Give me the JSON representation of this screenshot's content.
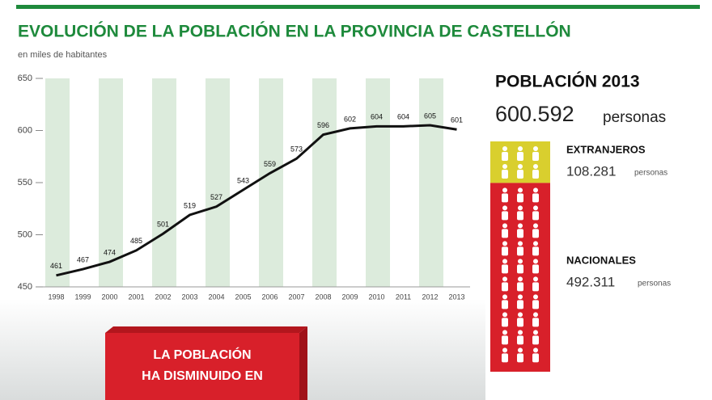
{
  "chart_data": [
    {
      "type": "line",
      "title": "EVOLUCIÓN DE LA POBLACIÓN EN LA PROVINCIA DE CASTELLÓN",
      "subtitle": "en miles de habitantes",
      "categories": [
        "1998",
        "1999",
        "2000",
        "2001",
        "2002",
        "2003",
        "2004",
        "2005",
        "2006",
        "2007",
        "2008",
        "2009",
        "2010",
        "2011",
        "2012",
        "2013"
      ],
      "series": [
        {
          "name": "Población",
          "color": "#111111",
          "values": [
            461,
            467,
            474,
            485,
            501,
            519,
            527,
            543,
            559,
            573,
            596,
            602,
            604,
            604,
            605,
            601
          ]
        }
      ],
      "ylim": [
        450,
        650
      ],
      "yticks": [
        450,
        500,
        550,
        600,
        650
      ],
      "annotation": [
        "LA POBLACIÓN",
        "HA DISMINUIDO EN"
      ]
    },
    {
      "type": "stacked_bar",
      "title": "POBLACIÓN 2013",
      "total": 600592,
      "total_label": "600.592",
      "unit": "personas",
      "series": [
        {
          "name": "EXTRANJEROS",
          "color": "#d9cf2e",
          "values": [
            108281
          ],
          "value_labels": [
            "108.281"
          ]
        },
        {
          "name": "NACIONALES",
          "color": "#d8202a",
          "values": [
            492311
          ],
          "value_labels": [
            "492.311"
          ]
        }
      ]
    }
  ]
}
